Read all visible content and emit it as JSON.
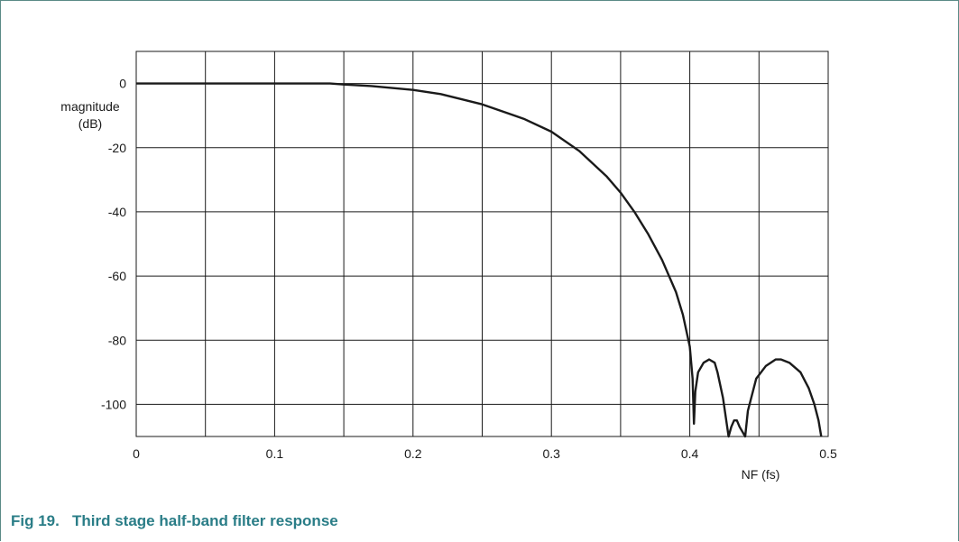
{
  "figure": {
    "caption": "Fig 19.   Third stage half-band filter response"
  },
  "chart_data": {
    "type": "line",
    "ylabel": "magnitude\n(dB)",
    "xlabel": "NF (fs)",
    "xlim": [
      0,
      0.5
    ],
    "ylim": [
      -110,
      10
    ],
    "xticks": [
      0,
      0.1,
      0.2,
      0.3,
      0.4,
      0.5
    ],
    "xtick_labels": [
      "0",
      "0.1",
      "0.2",
      "0.3",
      "0.4",
      "0.5"
    ],
    "yticks": [
      0,
      -20,
      -40,
      -60,
      -80,
      -100
    ],
    "ytick_labels": [
      "0",
      "-20",
      "-40",
      "-60",
      "-80",
      "-100"
    ],
    "grid": true,
    "line_color": "#1a1a1a",
    "series": [
      {
        "x": [
          0,
          0.05,
          0.1,
          0.14,
          0.15,
          0.17,
          0.2,
          0.22,
          0.25,
          0.28,
          0.3,
          0.32,
          0.34,
          0.35,
          0.36,
          0.37,
          0.38,
          0.39,
          0.395,
          0.4,
          0.402,
          0.403,
          0.404,
          0.406,
          0.41,
          0.414,
          0.418,
          0.42,
          0.424,
          0.428,
          0.43,
          0.432,
          0.434,
          0.436,
          0.44,
          0.442,
          0.448,
          0.455,
          0.462,
          0.466,
          0.472,
          0.48,
          0.486,
          0.49,
          0.493,
          0.495
        ],
        "y": [
          0,
          0,
          0,
          0,
          -0.3,
          -0.8,
          -2,
          -3.3,
          -6.5,
          -11,
          -15,
          -21,
          -29,
          -34,
          -40,
          -47,
          -55,
          -65,
          -72,
          -82,
          -92,
          -106,
          -96,
          -90,
          -87,
          -86,
          -87,
          -90,
          -98,
          -111,
          -107,
          -105,
          -105,
          -107,
          -111,
          -102,
          -92,
          -88,
          -86,
          -86,
          -87,
          -90,
          -95,
          -100,
          -105,
          -110
        ]
      }
    ]
  }
}
